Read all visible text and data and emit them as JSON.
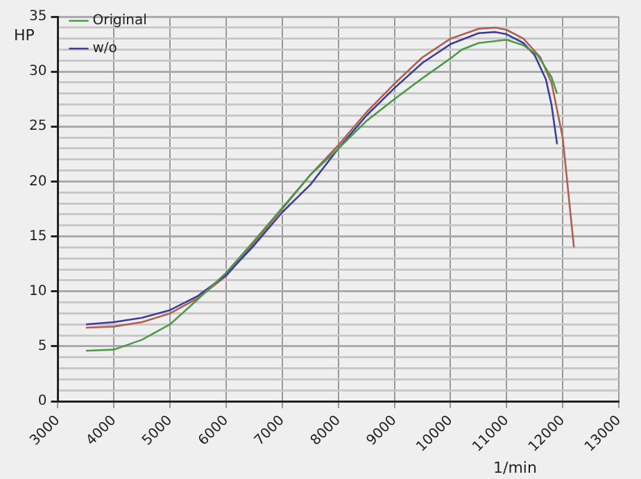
{
  "chart_data": {
    "type": "line",
    "xlabel": "1/min",
    "ylabel": "HP",
    "xlim": [
      3000,
      13000
    ],
    "xticks": [
      3000,
      4000,
      5000,
      6000,
      7000,
      8000,
      9000,
      10000,
      11000,
      12000,
      13000
    ],
    "ylim": [
      0,
      35
    ],
    "yticks": [
      0,
      {
        "value": 1,
        "label": null
      },
      {
        "value": 2,
        "label": null
      },
      {
        "value": 3,
        "label": null
      },
      {
        "value": 4,
        "label": null
      },
      5,
      {
        "value": 6,
        "label": null
      },
      {
        "value": 7,
        "label": null
      },
      {
        "value": 8,
        "label": null
      },
      {
        "value": 9,
        "label": null
      },
      10,
      {
        "value": 11,
        "label": null
      },
      {
        "value": 12,
        "label": null
      },
      {
        "value": 13,
        "label": null
      },
      {
        "value": 14,
        "label": null
      },
      15,
      {
        "value": 16,
        "label": null
      },
      {
        "value": 17,
        "label": null
      },
      {
        "value": 18,
        "label": null
      },
      {
        "value": 19,
        "label": null
      },
      20,
      {
        "value": 21,
        "label": null
      },
      {
        "value": 22,
        "label": null
      },
      {
        "value": 23,
        "label": null
      },
      {
        "value": 24,
        "label": null
      },
      25,
      {
        "value": 26,
        "label": null
      },
      {
        "value": 27,
        "label": null
      },
      {
        "value": 28,
        "label": null
      },
      {
        "value": 29,
        "label": null
      },
      30,
      {
        "value": 31,
        "label": null
      },
      {
        "value": 32,
        "label": null
      },
      {
        "value": 33,
        "label": null
      },
      {
        "value": 34,
        "label": null
      },
      35
    ],
    "grid": true,
    "legend": "top left",
    "marker": "none",
    "line_style": "solid",
    "series": [
      {
        "name": "Original",
        "color": "#4a9a4a",
        "x": [
          3500,
          4000,
          4500,
          5000,
          5500,
          6000,
          6500,
          7000,
          7500,
          8000,
          8500,
          9000,
          9500,
          10000,
          10200,
          10500,
          11000,
          11300,
          11550,
          11800,
          11900
        ],
        "values": [
          4.6,
          4.7,
          5.6,
          7.0,
          9.3,
          11.7,
          14.6,
          17.6,
          20.6,
          23.0,
          25.5,
          27.5,
          29.4,
          31.2,
          32.0,
          32.6,
          32.9,
          32.4,
          31.5,
          29.5,
          28.0
        ]
      },
      {
        "name": "w/o",
        "color": "#3c3ca0",
        "x": [
          3500,
          4000,
          4500,
          5000,
          5500,
          6000,
          6500,
          7000,
          7500,
          8000,
          8500,
          9000,
          9500,
          10000,
          10500,
          10800,
          11000,
          11300,
          11500,
          11700,
          11800,
          11900
        ],
        "values": [
          7.0,
          7.2,
          7.6,
          8.3,
          9.6,
          11.5,
          14.2,
          17.2,
          19.7,
          23.0,
          26.0,
          28.5,
          30.8,
          32.5,
          33.5,
          33.6,
          33.4,
          32.6,
          31.5,
          29.3,
          27.0,
          23.4
        ]
      },
      {
        "color": "#b06050",
        "x": [
          3500,
          4000,
          4500,
          5000,
          5500,
          6000,
          6500,
          7000,
          7500,
          8000,
          8500,
          9000,
          9500,
          10000,
          10500,
          10800,
          11000,
          11300,
          11600,
          11800,
          12000,
          12100,
          12200
        ],
        "values": [
          6.7,
          6.8,
          7.2,
          8.0,
          9.4,
          11.4,
          14.4,
          17.5,
          20.6,
          23.3,
          26.3,
          28.9,
          31.3,
          33.0,
          33.9,
          34.0,
          33.8,
          33.0,
          31.3,
          29.0,
          24.0,
          19.0,
          14.0
        ]
      }
    ]
  }
}
